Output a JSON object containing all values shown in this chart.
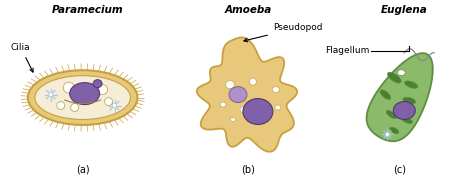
{
  "title_a": "Paramecium",
  "title_b": "Amoeba",
  "title_c": "Euglena",
  "label_a": "(a)",
  "label_b": "(b)",
  "label_c": "(c)",
  "annotation_a": "Cilia",
  "annotation_b": "Pseudopod",
  "annotation_c": "Flagellum",
  "bg_color": "#ffffff",
  "paramecium_body_color": "#e8c87a",
  "paramecium_inner_color": "#f5edd5",
  "amoeba_body_color": "#e8c87a",
  "euglena_body_color": "#8aba6a",
  "euglena_edge_color": "#5a9040",
  "nucleus_color": "#8060a8",
  "nucleolus_color": "#b090c8",
  "chloroplast_color": "#4a8030",
  "centriole_color": "#b0c8e0",
  "vacuole_edge": "#c0a858",
  "text_color": "#000000",
  "edge_color": "#c8a040"
}
